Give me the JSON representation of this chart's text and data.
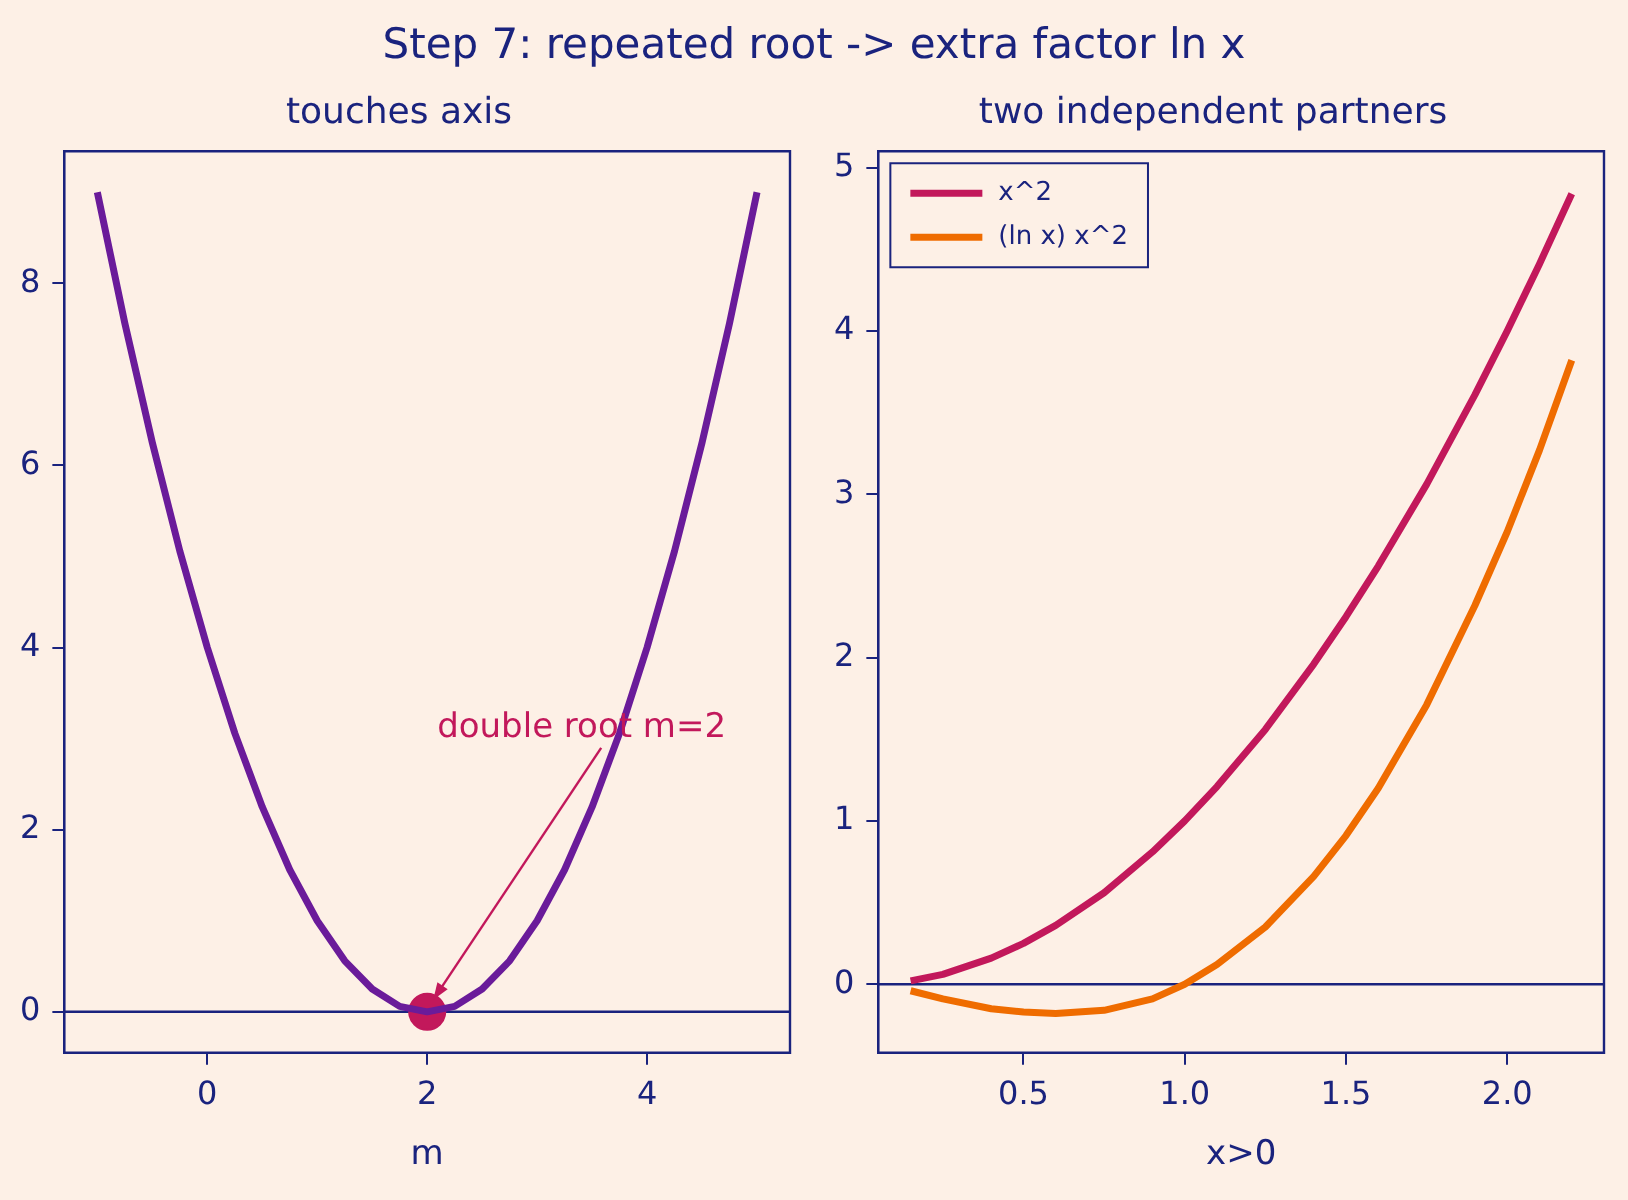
{
  "chart_data": [
    {
      "type": "other",
      "title": "Step 7: repeated root -> extra factor ln x"
    },
    {
      "type": "line",
      "title": "touches axis",
      "xlabel": "m",
      "xlim": [
        -1.3,
        5.3
      ],
      "xticks": [
        0,
        2,
        4
      ],
      "ylim": [
        -0.45,
        9.45
      ],
      "yticks": [
        0,
        2,
        4,
        6,
        8
      ],
      "grid": false,
      "legend": false,
      "series": [
        {
          "type": "line",
          "color": "#6a1b9a",
          "marker": "none",
          "line_style": "solid",
          "x": [
            -1,
            -0.75,
            -0.5,
            -0.25,
            0,
            0.25,
            0.5,
            0.75,
            1,
            1.25,
            1.5,
            1.75,
            2,
            2.25,
            2.5,
            2.75,
            3,
            3.25,
            3.5,
            3.75,
            4,
            4.25,
            4.5,
            4.75,
            5
          ],
          "values": [
            9,
            7.56,
            6.25,
            5.06,
            4,
            3.06,
            2.25,
            1.56,
            1,
            0.56,
            0.25,
            0.06,
            0,
            0.06,
            0.25,
            0.56,
            1,
            1.56,
            2.25,
            3.06,
            4,
            5.06,
            6.25,
            7.56,
            9
          ]
        },
        {
          "type": "scatter",
          "color": "#c2185b",
          "marker": "circle",
          "x": [
            2
          ],
          "values": [
            0
          ]
        }
      ],
      "ref_lines": [
        {
          "axis": "y",
          "value": 0,
          "color": "#1a237e"
        }
      ],
      "annotations": [
        {
          "text": "double root m=2",
          "x": 2,
          "y": 0
        }
      ]
    },
    {
      "type": "line",
      "title": "two independent partners",
      "xlabel": "x>0",
      "xlim": [
        0.05,
        2.3
      ],
      "xticks": [
        0.5,
        {
          "value": 1,
          "label": "1.0"
        },
        1.5,
        {
          "value": 2,
          "label": "2.0"
        }
      ],
      "ylim": [
        -0.42,
        5.1
      ],
      "yticks": [
        0,
        1,
        2,
        3,
        4,
        5
      ],
      "grid": false,
      "legend": "top left",
      "x": [
        0.15,
        0.25,
        0.4,
        0.5,
        0.6,
        0.75,
        0.9,
        1,
        1.1,
        1.25,
        1.4,
        1.5,
        1.6,
        1.75,
        1.9,
        2,
        2.1,
        2.2
      ],
      "series": [
        {
          "name": "x^2",
          "color": "#c2185b",
          "marker": "none",
          "line_style": "solid",
          "values": [
            0.02,
            0.06,
            0.16,
            0.25,
            0.36,
            0.56,
            0.81,
            1,
            1.21,
            1.56,
            1.96,
            2.25,
            2.56,
            3.06,
            3.61,
            4,
            4.41,
            4.84
          ]
        },
        {
          "name": "(ln x) x^2",
          "color": "#ef6c00",
          "marker": "none",
          "line_style": "solid",
          "values": [
            -0.04,
            -0.09,
            -0.15,
            -0.17,
            -0.18,
            -0.16,
            -0.09,
            0,
            0.12,
            0.35,
            0.66,
            0.91,
            1.2,
            1.71,
            2.32,
            2.77,
            3.27,
            3.82
          ]
        }
      ],
      "ref_lines": [
        {
          "axis": "y",
          "value": 0,
          "color": "#1a237e"
        }
      ]
    }
  ]
}
